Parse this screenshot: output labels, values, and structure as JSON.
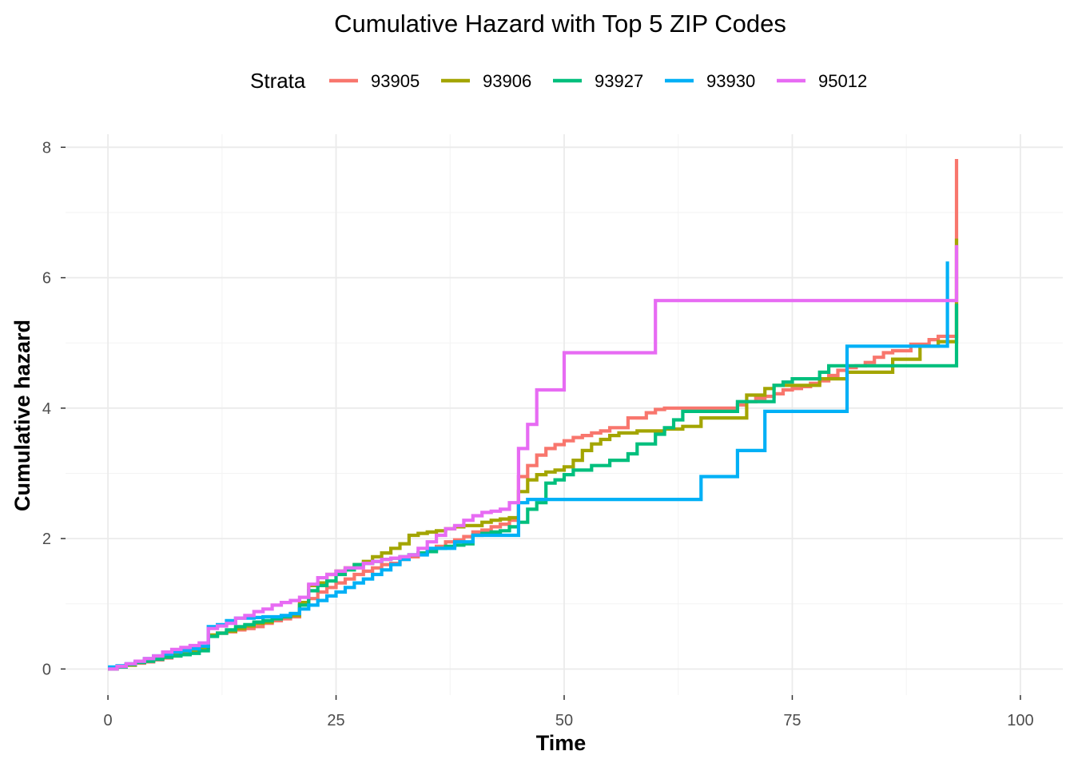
{
  "chart_data": {
    "type": "line",
    "title": "Cumulative Hazard with Top 5 ZIP Codes",
    "xlabel": "Time",
    "ylabel": "Cumulative hazard",
    "xlim": [
      -4.65,
      104.65
    ],
    "ylim": [
      -0.4,
      8.2
    ],
    "x_ticks": [
      0,
      25,
      50,
      75,
      100
    ],
    "x_tick_labels": [
      "0",
      "25",
      "50",
      "75",
      "100"
    ],
    "y_ticks": [
      0,
      2,
      4,
      6,
      8
    ],
    "y_tick_labels": [
      "0",
      "2",
      "4",
      "6",
      "8"
    ],
    "grid": true,
    "legend": {
      "title": "Strata",
      "position": "top"
    },
    "step": true,
    "series": [
      {
        "name": "93905",
        "color": "#F8766D",
        "points": [
          [
            0,
            0
          ],
          [
            1,
            0.03
          ],
          [
            2,
            0.06
          ],
          [
            3,
            0.09
          ],
          [
            4,
            0.11
          ],
          [
            5,
            0.14
          ],
          [
            6,
            0.17
          ],
          [
            7,
            0.2
          ],
          [
            8,
            0.24
          ],
          [
            9,
            0.28
          ],
          [
            10,
            0.31
          ],
          [
            11,
            0.52
          ],
          [
            12,
            0.55
          ],
          [
            13,
            0.57
          ],
          [
            14,
            0.6
          ],
          [
            15,
            0.62
          ],
          [
            16,
            0.65
          ],
          [
            17,
            0.7
          ],
          [
            18,
            0.74
          ],
          [
            19,
            0.77
          ],
          [
            20,
            0.8
          ],
          [
            21,
            0.98
          ],
          [
            22,
            1.08
          ],
          [
            23,
            1.18
          ],
          [
            24,
            1.25
          ],
          [
            25,
            1.32
          ],
          [
            26,
            1.38
          ],
          [
            27,
            1.45
          ],
          [
            28,
            1.5
          ],
          [
            29,
            1.55
          ],
          [
            30,
            1.6
          ],
          [
            31,
            1.62
          ],
          [
            32,
            1.68
          ],
          [
            33,
            1.72
          ],
          [
            34,
            1.78
          ],
          [
            35,
            1.82
          ],
          [
            36,
            1.88
          ],
          [
            37,
            1.95
          ],
          [
            38,
            1.98
          ],
          [
            39,
            2.03
          ],
          [
            40,
            2.1
          ],
          [
            41,
            2.13
          ],
          [
            42,
            2.18
          ],
          [
            43,
            2.22
          ],
          [
            44,
            2.28
          ],
          [
            45,
            2.95
          ],
          [
            46,
            3.12
          ],
          [
            47,
            3.28
          ],
          [
            48,
            3.38
          ],
          [
            49,
            3.44
          ],
          [
            50,
            3.5
          ],
          [
            51,
            3.55
          ],
          [
            52,
            3.58
          ],
          [
            53,
            3.62
          ],
          [
            54,
            3.65
          ],
          [
            55,
            3.7
          ],
          [
            57,
            3.85
          ],
          [
            59,
            3.93
          ],
          [
            60,
            3.98
          ],
          [
            61,
            4.0
          ],
          [
            69,
            4.05
          ],
          [
            70,
            4.1
          ],
          [
            71,
            4.15
          ],
          [
            72,
            4.18
          ],
          [
            73,
            4.22
          ],
          [
            74,
            4.28
          ],
          [
            75,
            4.3
          ],
          [
            76,
            4.33
          ],
          [
            77,
            4.38
          ],
          [
            78,
            4.42
          ],
          [
            79,
            4.5
          ],
          [
            80,
            4.58
          ],
          [
            81,
            4.62
          ],
          [
            82,
            4.65
          ],
          [
            83,
            4.7
          ],
          [
            84,
            4.78
          ],
          [
            85,
            4.85
          ],
          [
            86,
            4.88
          ],
          [
            88,
            4.98
          ],
          [
            90,
            5.05
          ],
          [
            91,
            5.1
          ],
          [
            93,
            7.82
          ]
        ]
      },
      {
        "name": "93906",
        "color": "#A3A500",
        "points": [
          [
            0,
            0
          ],
          [
            1,
            0.03
          ],
          [
            2,
            0.06
          ],
          [
            3,
            0.1
          ],
          [
            4,
            0.13
          ],
          [
            5,
            0.16
          ],
          [
            6,
            0.19
          ],
          [
            7,
            0.23
          ],
          [
            8,
            0.25
          ],
          [
            9,
            0.28
          ],
          [
            10,
            0.33
          ],
          [
            11,
            0.52
          ],
          [
            12,
            0.55
          ],
          [
            13,
            0.58
          ],
          [
            14,
            0.62
          ],
          [
            15,
            0.66
          ],
          [
            16,
            0.7
          ],
          [
            17,
            0.72
          ],
          [
            18,
            0.78
          ],
          [
            19,
            0.8
          ],
          [
            20,
            0.82
          ],
          [
            21,
            1.02
          ],
          [
            22,
            1.28
          ],
          [
            23,
            1.32
          ],
          [
            24,
            1.45
          ],
          [
            25,
            1.5
          ],
          [
            26,
            1.55
          ],
          [
            27,
            1.6
          ],
          [
            28,
            1.65
          ],
          [
            29,
            1.72
          ],
          [
            30,
            1.78
          ],
          [
            31,
            1.85
          ],
          [
            32,
            1.92
          ],
          [
            33,
            2.05
          ],
          [
            34,
            2.08
          ],
          [
            35,
            2.1
          ],
          [
            36,
            2.12
          ],
          [
            37,
            2.15
          ],
          [
            38,
            2.18
          ],
          [
            39,
            2.2
          ],
          [
            40,
            2.2
          ],
          [
            41,
            2.25
          ],
          [
            42,
            2.28
          ],
          [
            43,
            2.3
          ],
          [
            44,
            2.32
          ],
          [
            45,
            2.72
          ],
          [
            46,
            2.9
          ],
          [
            47,
            2.98
          ],
          [
            48,
            3.02
          ],
          [
            49,
            3.05
          ],
          [
            50,
            3.1
          ],
          [
            51,
            3.2
          ],
          [
            52,
            3.35
          ],
          [
            53,
            3.45
          ],
          [
            54,
            3.52
          ],
          [
            55,
            3.58
          ],
          [
            56,
            3.62
          ],
          [
            58,
            3.65
          ],
          [
            61,
            3.68
          ],
          [
            63,
            3.72
          ],
          [
            65,
            3.85
          ],
          [
            70,
            4.2
          ],
          [
            72,
            4.3
          ],
          [
            73,
            4.35
          ],
          [
            78,
            4.45
          ],
          [
            81,
            4.55
          ],
          [
            86,
            4.75
          ],
          [
            89,
            4.95
          ],
          [
            91,
            5.02
          ],
          [
            93,
            6.6
          ]
        ]
      },
      {
        "name": "93927",
        "color": "#00BF7D",
        "points": [
          [
            0,
            0
          ],
          [
            1,
            0.03
          ],
          [
            2,
            0.07
          ],
          [
            3,
            0.1
          ],
          [
            4,
            0.12
          ],
          [
            5,
            0.15
          ],
          [
            6,
            0.18
          ],
          [
            7,
            0.2
          ],
          [
            8,
            0.22
          ],
          [
            9,
            0.24
          ],
          [
            10,
            0.28
          ],
          [
            11,
            0.5
          ],
          [
            12,
            0.55
          ],
          [
            13,
            0.6
          ],
          [
            14,
            0.65
          ],
          [
            15,
            0.68
          ],
          [
            16,
            0.72
          ],
          [
            17,
            0.74
          ],
          [
            18,
            0.77
          ],
          [
            19,
            0.8
          ],
          [
            20,
            0.85
          ],
          [
            21,
            0.98
          ],
          [
            22,
            1.2
          ],
          [
            23,
            1.28
          ],
          [
            24,
            1.35
          ],
          [
            25,
            1.45
          ],
          [
            26,
            1.52
          ],
          [
            27,
            1.6
          ],
          [
            28,
            1.62
          ],
          [
            29,
            1.65
          ],
          [
            30,
            1.68
          ],
          [
            31,
            1.7
          ],
          [
            32,
            1.72
          ],
          [
            33,
            1.75
          ],
          [
            34,
            1.78
          ],
          [
            35,
            1.8
          ],
          [
            36,
            1.85
          ],
          [
            37,
            1.88
          ],
          [
            38,
            1.9
          ],
          [
            39,
            1.92
          ],
          [
            40,
            2.05
          ],
          [
            41,
            2.08
          ],
          [
            42,
            2.1
          ],
          [
            43,
            2.12
          ],
          [
            44,
            2.18
          ],
          [
            45,
            2.25
          ],
          [
            46,
            2.45
          ],
          [
            47,
            2.55
          ],
          [
            48,
            2.85
          ],
          [
            49,
            2.9
          ],
          [
            50,
            2.98
          ],
          [
            51,
            3.05
          ],
          [
            53,
            3.12
          ],
          [
            55,
            3.2
          ],
          [
            57,
            3.3
          ],
          [
            58,
            3.45
          ],
          [
            60,
            3.6
          ],
          [
            61,
            3.7
          ],
          [
            62,
            3.82
          ],
          [
            63,
            3.95
          ],
          [
            69,
            4.1
          ],
          [
            73,
            4.35
          ],
          [
            74,
            4.4
          ],
          [
            75,
            4.45
          ],
          [
            78,
            4.55
          ],
          [
            79,
            4.65
          ],
          [
            93,
            5.6
          ]
        ]
      },
      {
        "name": "93930",
        "color": "#00B0F6",
        "points": [
          [
            0,
            0.03
          ],
          [
            1,
            0.05
          ],
          [
            2,
            0.08
          ],
          [
            3,
            0.12
          ],
          [
            4,
            0.16
          ],
          [
            5,
            0.2
          ],
          [
            6,
            0.23
          ],
          [
            7,
            0.26
          ],
          [
            8,
            0.28
          ],
          [
            9,
            0.31
          ],
          [
            10,
            0.35
          ],
          [
            11,
            0.65
          ],
          [
            12,
            0.68
          ],
          [
            13,
            0.74
          ],
          [
            14,
            0.78
          ],
          [
            15,
            0.78
          ],
          [
            16,
            0.79
          ],
          [
            17,
            0.8
          ],
          [
            18,
            0.8
          ],
          [
            19,
            0.82
          ],
          [
            20,
            0.85
          ],
          [
            21,
            0.92
          ],
          [
            22,
            0.98
          ],
          [
            23,
            1.05
          ],
          [
            24,
            1.12
          ],
          [
            25,
            1.18
          ],
          [
            26,
            1.25
          ],
          [
            27,
            1.32
          ],
          [
            28,
            1.38
          ],
          [
            29,
            1.45
          ],
          [
            30,
            1.52
          ],
          [
            31,
            1.6
          ],
          [
            32,
            1.68
          ],
          [
            33,
            1.75
          ],
          [
            35,
            1.85
          ],
          [
            38,
            1.95
          ],
          [
            40,
            2.05
          ],
          [
            45,
            2.55
          ],
          [
            46,
            2.6
          ],
          [
            65,
            2.95
          ],
          [
            69,
            3.35
          ],
          [
            72,
            3.95
          ],
          [
            81,
            4.95
          ],
          [
            92,
            6.25
          ]
        ]
      },
      {
        "name": "95012",
        "color": "#E76BF3",
        "points": [
          [
            0,
            0
          ],
          [
            1,
            0.04
          ],
          [
            2,
            0.08
          ],
          [
            3,
            0.12
          ],
          [
            4,
            0.16
          ],
          [
            5,
            0.2
          ],
          [
            6,
            0.26
          ],
          [
            7,
            0.3
          ],
          [
            8,
            0.33
          ],
          [
            9,
            0.36
          ],
          [
            10,
            0.4
          ],
          [
            11,
            0.62
          ],
          [
            12,
            0.66
          ],
          [
            13,
            0.7
          ],
          [
            14,
            0.78
          ],
          [
            15,
            0.82
          ],
          [
            16,
            0.88
          ],
          [
            17,
            0.92
          ],
          [
            18,
            0.98
          ],
          [
            19,
            1.02
          ],
          [
            20,
            1.05
          ],
          [
            21,
            1.1
          ],
          [
            22,
            1.3
          ],
          [
            23,
            1.4
          ],
          [
            24,
            1.45
          ],
          [
            25,
            1.5
          ],
          [
            26,
            1.55
          ],
          [
            27,
            1.55
          ],
          [
            28,
            1.62
          ],
          [
            29,
            1.65
          ],
          [
            30,
            1.68
          ],
          [
            31,
            1.7
          ],
          [
            32,
            1.72
          ],
          [
            33,
            1.75
          ],
          [
            34,
            1.85
          ],
          [
            35,
            1.95
          ],
          [
            36,
            2.05
          ],
          [
            37,
            2.15
          ],
          [
            38,
            2.2
          ],
          [
            39,
            2.28
          ],
          [
            40,
            2.35
          ],
          [
            41,
            2.4
          ],
          [
            42,
            2.42
          ],
          [
            43,
            2.45
          ],
          [
            44,
            2.55
          ],
          [
            45,
            3.38
          ],
          [
            46,
            3.75
          ],
          [
            47,
            4.28
          ],
          [
            50,
            4.85
          ],
          [
            60,
            5.65
          ],
          [
            93,
            6.5
          ]
        ]
      }
    ]
  }
}
